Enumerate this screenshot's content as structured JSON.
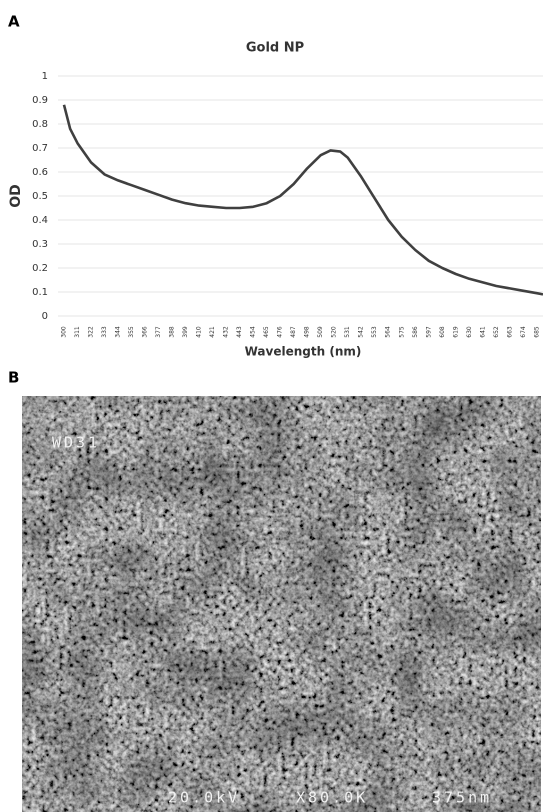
{
  "chart_data": {
    "type": "line",
    "title": "Gold NP",
    "xlabel": "Wavelength (nm)",
    "ylabel": "OD",
    "x": [
      300,
      305,
      311,
      322,
      333,
      344,
      355,
      366,
      377,
      388,
      399,
      410,
      421,
      432,
      443,
      454,
      465,
      476,
      487,
      498,
      509,
      517,
      525,
      531,
      542,
      553,
      564,
      575,
      586,
      597,
      608,
      619,
      630,
      641,
      652,
      663,
      674,
      685,
      690
    ],
    "values": [
      0.88,
      0.78,
      0.72,
      0.64,
      0.59,
      0.565,
      0.545,
      0.525,
      0.505,
      0.485,
      0.47,
      0.46,
      0.455,
      0.45,
      0.45,
      0.455,
      0.47,
      0.5,
      0.55,
      0.615,
      0.67,
      0.69,
      0.685,
      0.66,
      0.58,
      0.49,
      0.4,
      0.33,
      0.275,
      0.23,
      0.2,
      0.175,
      0.155,
      0.14,
      0.125,
      0.115,
      0.105,
      0.095,
      0.09
    ],
    "color": "#404040",
    "xlim": [
      300,
      690
    ],
    "xticks": [
      300,
      311,
      322,
      333,
      344,
      355,
      366,
      377,
      388,
      399,
      410,
      421,
      432,
      443,
      454,
      465,
      476,
      487,
      498,
      509,
      520,
      531,
      542,
      553,
      564,
      575,
      586,
      597,
      608,
      619,
      630,
      641,
      652,
      663,
      674,
      685
    ],
    "ylim": [
      0,
      1
    ],
    "yticks": [
      0,
      0.1,
      0.2,
      0.3,
      0.4,
      0.5,
      0.6,
      0.7,
      0.8,
      0.9,
      1
    ],
    "grid": true
  },
  "panel_labels": [
    "A",
    "B"
  ],
  "micrograph": {
    "label": "WD31",
    "voltage": "20.0kV",
    "magnification": "X80.0K",
    "scale": "375nm"
  }
}
